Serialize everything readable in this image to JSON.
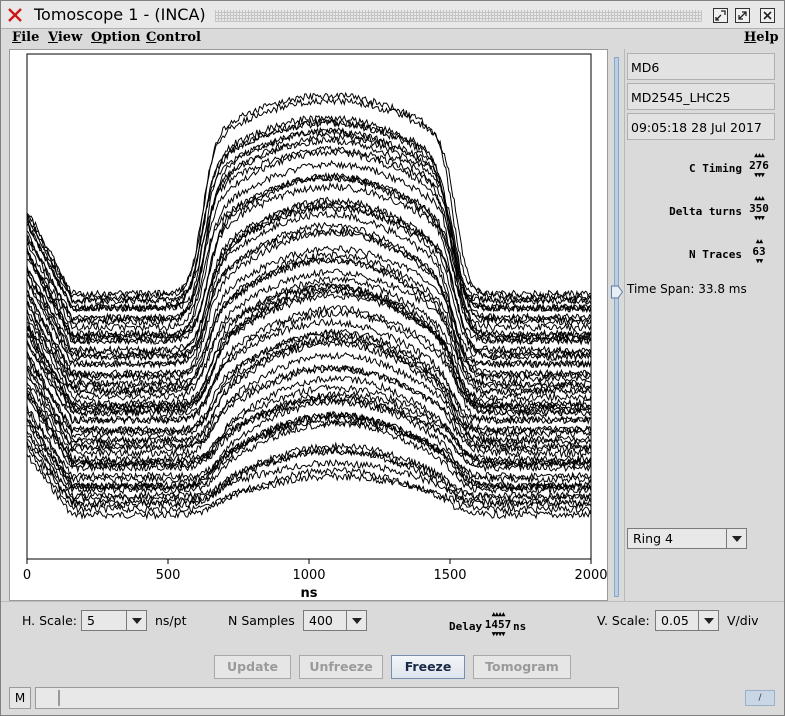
{
  "window": {
    "title": "Tomoscope 1 - (INCA)",
    "app_icon": "red-x-icon",
    "controls": [
      "minimize-icon",
      "maximize-icon",
      "close-icon"
    ]
  },
  "menu": {
    "left": [
      {
        "label": "File",
        "u": "F",
        "rest": "ile"
      },
      {
        "label": "View",
        "u": "V",
        "rest": "iew"
      },
      {
        "label": "Option",
        "u": "O",
        "rest": "ption"
      },
      {
        "label": "Control",
        "u": "C",
        "rest": "ontrol"
      }
    ],
    "right": {
      "label": "Help",
      "u": "H",
      "rest": "elp"
    }
  },
  "plot": {
    "xlabel": "ns",
    "xticks": [
      "0",
      "500",
      "1000",
      "1500",
      "2000"
    ],
    "xlim": [
      0,
      2000
    ],
    "trace_count": 63,
    "line_color": "#000000",
    "background": "#ffffff"
  },
  "side": {
    "info1": "MD6",
    "info2": "MD2545_LHC25",
    "info3": "09:05:18 28 Jul 2017",
    "c_timing_label": "C Timing",
    "c_timing_value": "276",
    "delta_turns_label": "Delta turns",
    "delta_turns_value": "350",
    "n_traces_label": "N Traces",
    "n_traces_value": "63",
    "time_span": "Time Span: 33.8 ms",
    "ring_value": "Ring 4"
  },
  "controls": {
    "hscale_label": "H. Scale:",
    "hscale_value": "5",
    "hscale_unit": "ns/pt",
    "nsamples_label": "N Samples",
    "nsamples_value": "400",
    "delay_label": "Delay",
    "delay_value": "1457",
    "delay_unit": "ns",
    "vscale_label": "V. Scale:",
    "vscale_value": "0.05",
    "vscale_unit": "V/div"
  },
  "buttons": {
    "update": "Update",
    "unfreeze": "Unfreeze",
    "freeze": "Freeze",
    "tomogram": "Tomogram"
  },
  "status": {
    "mode": "M",
    "right": "/"
  },
  "arrows": {
    "up": "▲▲▲",
    "down": "▼▼▼",
    "up4": "▲▲▲▲",
    "down4": "▼▼▼▼",
    "up2": "▲▲",
    "down2": "▼▼"
  }
}
